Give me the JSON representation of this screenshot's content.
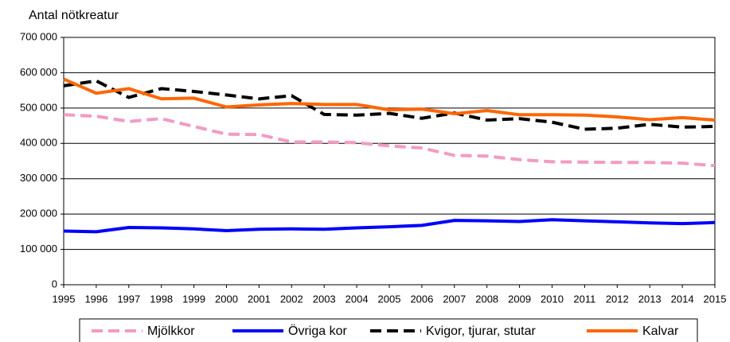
{
  "chart_data": {
    "type": "line",
    "y_axis_title": "Antal nötkreatur",
    "categories": [
      "1995",
      "1996",
      "1997",
      "1998",
      "1999",
      "2000",
      "2001",
      "2002",
      "2003",
      "2004",
      "2005",
      "2006",
      "2007",
      "2008",
      "2009",
      "2010",
      "2011",
      "2012",
      "2013",
      "2014",
      "2015"
    ],
    "series": [
      {
        "name": "Mjölkkor",
        "color": "#f49ac1",
        "line_style": "dashed",
        "values": [
          481000,
          477000,
          462000,
          470000,
          448000,
          426000,
          425000,
          404000,
          404000,
          402000,
          393000,
          387000,
          366000,
          364000,
          354000,
          348000,
          347000,
          346000,
          346000,
          344000,
          337000
        ]
      },
      {
        "name": "Övriga kor",
        "color": "#0000ff",
        "line_style": "solid",
        "values": [
          152000,
          150000,
          162000,
          161000,
          158000,
          153000,
          157000,
          158000,
          157000,
          161000,
          164000,
          168000,
          182000,
          181000,
          179000,
          184000,
          181000,
          178000,
          175000,
          173000,
          176000
        ]
      },
      {
        "name": "Kvigor, tjurar, stutar",
        "color": "#000000",
        "line_style": "dashed",
        "values": [
          563000,
          577000,
          530000,
          555000,
          547000,
          537000,
          526000,
          535000,
          482000,
          480000,
          485000,
          471000,
          486000,
          466000,
          470000,
          460000,
          440000,
          443000,
          454000,
          446000,
          448000
        ]
      },
      {
        "name": "Kalvar",
        "color": "#ff6600",
        "line_style": "solid",
        "values": [
          582000,
          542000,
          555000,
          526000,
          528000,
          503000,
          509000,
          513000,
          510000,
          510000,
          495000,
          497000,
          484000,
          493000,
          481000,
          481000,
          480000,
          475000,
          467000,
          473000,
          466000
        ]
      }
    ],
    "ylim": [
      0,
      700000
    ],
    "yticks": [
      {
        "value": 0,
        "label": "0"
      },
      {
        "value": 100000,
        "label": "100 000"
      },
      {
        "value": 200000,
        "label": "200 000"
      },
      {
        "value": 300000,
        "label": "300 000"
      },
      {
        "value": 400000,
        "label": "400 000"
      },
      {
        "value": 500000,
        "label": "500 000"
      },
      {
        "value": 600000,
        "label": "600 000"
      },
      {
        "value": 700000,
        "label": "700 000"
      }
    ],
    "grid": true,
    "legend": "bottom"
  }
}
